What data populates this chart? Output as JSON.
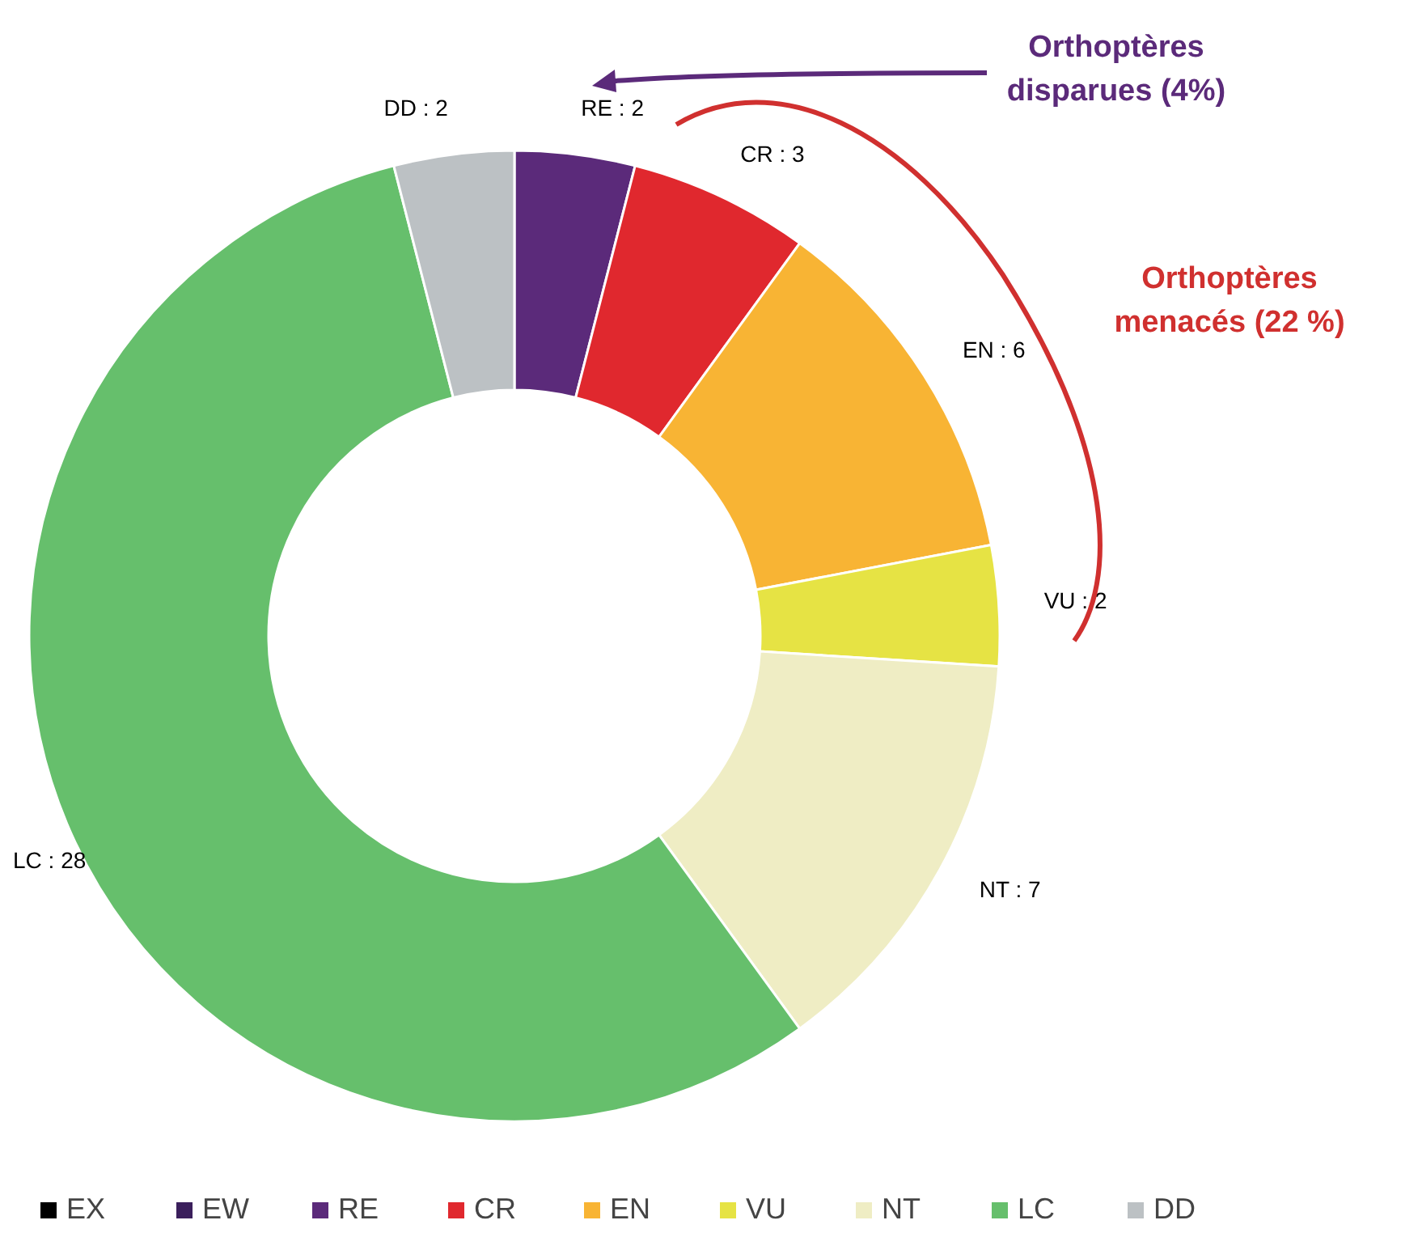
{
  "chart_data": {
    "type": "donut",
    "categories": [
      "EX",
      "EW",
      "RE",
      "CR",
      "EN",
      "VU",
      "NT",
      "LC",
      "DD"
    ],
    "values": [
      0,
      0,
      2,
      3,
      6,
      2,
      7,
      28,
      2
    ],
    "colors": [
      "#000000",
      "#3b1f5c",
      "#5b2a7a",
      "#e0282e",
      "#f8b434",
      "#e6e344",
      "#efedc4",
      "#66bf6c",
      "#bcc1c4"
    ],
    "value_labels": [
      null,
      null,
      "RE : 2",
      "CR : 3",
      "EN : 6",
      "VU : 2",
      "NT : 7",
      "LC : 28",
      "DD : 2"
    ],
    "legend": "bottom",
    "annotations": [
      "Orthoptères disparues (4%)",
      "Orthoptères menacés (22 %)"
    ]
  }
}
